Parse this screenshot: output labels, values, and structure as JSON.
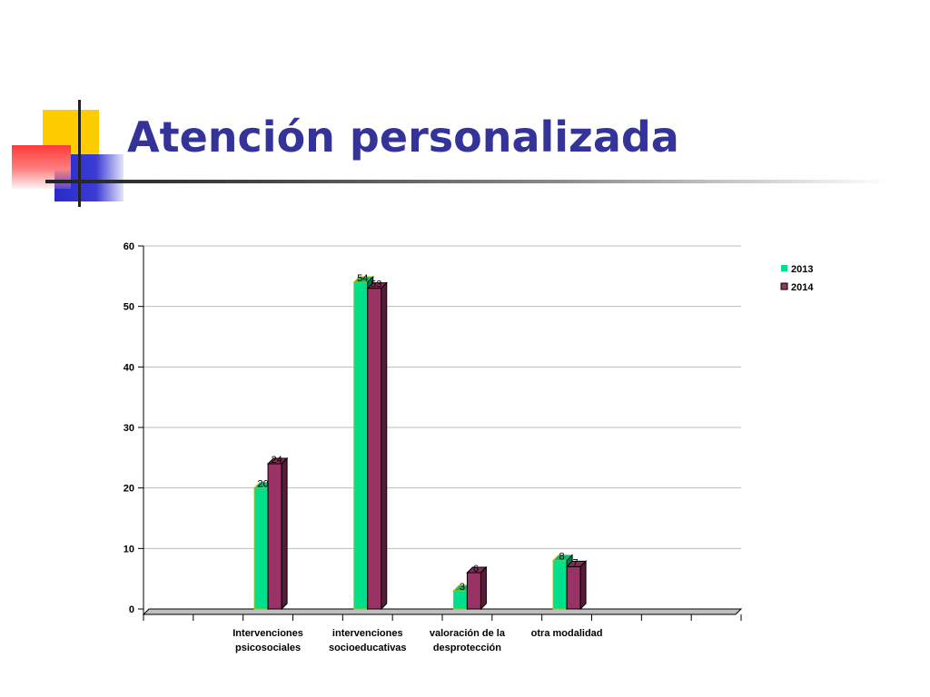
{
  "slide": {
    "title": "Atención personalizada"
  },
  "chart_data": {
    "type": "bar",
    "categories": [
      [
        "Intervenciones",
        "psicosociales"
      ],
      [
        "intervenciones",
        "socioeducativas"
      ],
      [
        "valoración de la",
        "desprotección"
      ],
      [
        "otra modalidad"
      ]
    ],
    "series": [
      {
        "name": "2013",
        "values": [
          20,
          54,
          3,
          8
        ],
        "color": "#00e08c"
      },
      {
        "name": "2014",
        "values": [
          24,
          53,
          6,
          7
        ],
        "color": "#993366"
      }
    ],
    "ylim": [
      0,
      60
    ],
    "yticks": [
      "0",
      "10",
      "20",
      "30",
      "40",
      "50",
      "60"
    ],
    "grid": true,
    "legend": "right",
    "title": "",
    "xlabel": "",
    "ylabel": ""
  }
}
